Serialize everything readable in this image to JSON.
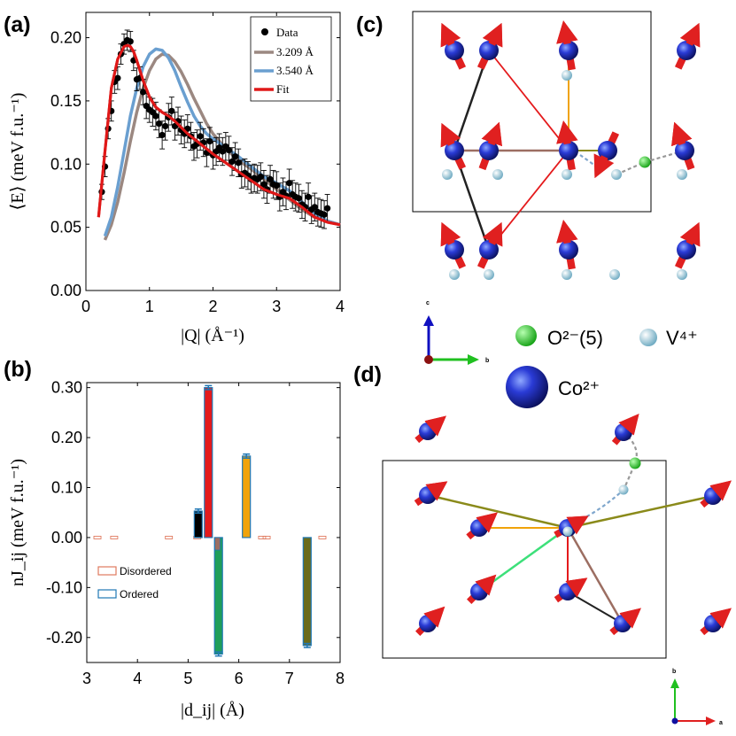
{
  "panels": {
    "a": "(a)",
    "b": "(b)",
    "c": "(c)",
    "d": "(d)"
  },
  "chart_data": [
    {
      "id": "a",
      "type": "line",
      "xlabel": "|Q| (Å⁻¹)",
      "ylabel": "⟨E⟩ (meV f.u.⁻¹)",
      "xlim": [
        0,
        4
      ],
      "ylim": [
        0,
        0.22
      ],
      "xticks": [
        "0",
        "1",
        "2",
        "3",
        "4"
      ],
      "yticks": [
        "0.00",
        "0.05",
        "0.10",
        "0.15",
        "0.20"
      ],
      "legend_position": "top-right",
      "legend": [
        "Data",
        "3.209 Å",
        "3.540 Å",
        "Fit"
      ],
      "colors": {
        "data": "#000000",
        "gray": "#9b8881",
        "blue": "#6a9fd0",
        "fit": "#e01818"
      },
      "data_points": {
        "x": [
          0.25,
          0.3,
          0.35,
          0.4,
          0.45,
          0.5,
          0.55,
          0.6,
          0.65,
          0.7,
          0.75,
          0.8,
          0.85,
          0.9,
          0.95,
          1.0,
          1.05,
          1.1,
          1.15,
          1.2,
          1.25,
          1.3,
          1.35,
          1.4,
          1.45,
          1.5,
          1.55,
          1.6,
          1.65,
          1.7,
          1.75,
          1.8,
          1.85,
          1.9,
          1.95,
          2.0,
          2.05,
          2.1,
          2.15,
          2.2,
          2.25,
          2.3,
          2.35,
          2.4,
          2.45,
          2.5,
          2.55,
          2.6,
          2.65,
          2.7,
          2.75,
          2.8,
          2.85,
          2.9,
          2.95,
          3.0,
          3.05,
          3.1,
          3.15,
          3.2,
          3.25,
          3.3,
          3.35,
          3.4,
          3.45,
          3.5,
          3.55,
          3.6,
          3.65,
          3.7,
          3.75,
          3.8
        ],
        "y": [
          0.078,
          0.098,
          0.128,
          0.142,
          0.165,
          0.168,
          0.187,
          0.195,
          0.198,
          0.197,
          0.182,
          0.167,
          0.168,
          0.157,
          0.146,
          0.143,
          0.141,
          0.138,
          0.132,
          0.123,
          0.13,
          0.137,
          0.142,
          0.13,
          0.134,
          0.127,
          0.124,
          0.128,
          0.122,
          0.114,
          0.116,
          0.122,
          0.117,
          0.109,
          0.118,
          0.107,
          0.11,
          0.113,
          0.11,
          0.114,
          0.111,
          0.102,
          0.106,
          0.101,
          0.092,
          0.093,
          0.091,
          0.088,
          0.089,
          0.088,
          0.09,
          0.084,
          0.08,
          0.088,
          0.084,
          0.083,
          0.074,
          0.078,
          0.075,
          0.085,
          0.076,
          0.074,
          0.073,
          0.068,
          0.066,
          0.074,
          0.064,
          0.066,
          0.062,
          0.061,
          0.06,
          0.065
        ],
        "err": [
          0.006,
          0.008,
          0.008,
          0.008,
          0.009,
          0.009,
          0.008,
          0.008,
          0.008,
          0.008,
          0.008,
          0.009,
          0.009,
          0.01,
          0.01,
          0.01,
          0.011,
          0.011,
          0.011,
          0.011,
          0.011,
          0.011,
          0.011,
          0.011,
          0.011,
          0.011,
          0.011,
          0.011,
          0.011,
          0.011,
          0.011,
          0.011,
          0.011,
          0.011,
          0.011,
          0.011,
          0.011,
          0.011,
          0.011,
          0.011,
          0.011,
          0.011,
          0.011,
          0.011,
          0.011,
          0.011,
          0.011,
          0.011,
          0.011,
          0.011,
          0.011,
          0.011,
          0.011,
          0.011,
          0.011,
          0.011,
          0.011,
          0.011,
          0.011,
          0.011,
          0.011,
          0.011,
          0.011,
          0.011,
          0.011,
          0.011,
          0.011,
          0.011,
          0.011,
          0.011,
          0.011,
          0.011
        ]
      },
      "series": [
        {
          "name": "3.209 Å",
          "x": [
            0.3,
            0.4,
            0.5,
            0.6,
            0.7,
            0.8,
            0.9,
            1.0,
            1.1,
            1.2,
            1.3,
            1.4,
            1.5,
            1.6,
            1.7,
            1.8,
            1.9,
            2.0,
            2.2,
            2.4,
            2.6,
            2.8,
            3.0,
            3.2,
            3.4,
            3.6,
            3.8,
            4.0
          ],
          "y": [
            0.04,
            0.052,
            0.07,
            0.093,
            0.118,
            0.141,
            0.16,
            0.174,
            0.183,
            0.187,
            0.186,
            0.181,
            0.173,
            0.163,
            0.152,
            0.142,
            0.132,
            0.124,
            0.112,
            0.103,
            0.096,
            0.088,
            0.08,
            0.072,
            0.064,
            0.058,
            0.055,
            0.052
          ]
        },
        {
          "name": "3.540 Å",
          "x": [
            0.3,
            0.4,
            0.5,
            0.6,
            0.7,
            0.8,
            0.9,
            1.0,
            1.1,
            1.2,
            1.3,
            1.4,
            1.5,
            1.6,
            1.7,
            1.8,
            1.9,
            2.0,
            2.2,
            2.4,
            2.6,
            2.8,
            3.0,
            3.2,
            3.4,
            3.6,
            3.8,
            4.0
          ],
          "y": [
            0.043,
            0.058,
            0.082,
            0.11,
            0.138,
            0.16,
            0.177,
            0.187,
            0.191,
            0.19,
            0.184,
            0.174,
            0.161,
            0.149,
            0.138,
            0.13,
            0.124,
            0.12,
            0.113,
            0.106,
            0.098,
            0.09,
            0.085,
            0.079,
            0.07,
            0.061,
            0.055,
            0.052
          ]
        },
        {
          "name": "Fit",
          "x": [
            0.2,
            0.3,
            0.4,
            0.5,
            0.6,
            0.65,
            0.7,
            0.75,
            0.8,
            0.9,
            1.0,
            1.1,
            1.2,
            1.3,
            1.4,
            1.5,
            1.6,
            1.7,
            1.8,
            1.9,
            2.0,
            2.2,
            2.4,
            2.6,
            2.8,
            3.0,
            3.2,
            3.4,
            3.6,
            3.8,
            4.0
          ],
          "y": [
            0.058,
            0.11,
            0.16,
            0.183,
            0.193,
            0.194,
            0.193,
            0.189,
            0.182,
            0.166,
            0.153,
            0.145,
            0.141,
            0.138,
            0.134,
            0.129,
            0.124,
            0.12,
            0.116,
            0.112,
            0.108,
            0.101,
            0.094,
            0.087,
            0.08,
            0.076,
            0.073,
            0.066,
            0.058,
            0.054,
            0.052
          ]
        }
      ]
    },
    {
      "id": "b",
      "type": "bar",
      "xlabel": "|d_ij| (Å)",
      "ylabel": "nJ_ij (meV f.u.⁻¹)",
      "xlim": [
        3,
        8
      ],
      "ylim": [
        -0.25,
        0.31
      ],
      "xticks": [
        "3",
        "4",
        "5",
        "6",
        "7",
        "8"
      ],
      "yticks": [
        "0.30",
        "0.20",
        "0.10",
        "0.00",
        "-0.10",
        "-0.20"
      ],
      "legend_position": "lower-left",
      "legend": [
        "Disordered",
        "Ordered"
      ],
      "ordered": [
        {
          "d": 5.2,
          "value": 0.053,
          "err": 0.004,
          "color": "#000000"
        },
        {
          "d": 5.4,
          "value": 0.3,
          "err": 0.004,
          "color": "#e41a1c"
        },
        {
          "d": 5.6,
          "value": -0.233,
          "err": 0.004,
          "color": "#1f9e5a"
        },
        {
          "d": 6.15,
          "value": 0.163,
          "err": 0.004,
          "color": "#f0a30a"
        },
        {
          "d": 7.35,
          "value": -0.216,
          "err": 0.004,
          "color": "#6b6b1a"
        }
      ],
      "disordered": [
        3.21,
        3.54,
        4.62,
        5.18,
        6.46,
        6.55,
        7.65
      ],
      "colors": {
        "disordered": "#e07a5f",
        "ordered": "#1f77b4",
        "brown": "#9c6e62"
      }
    }
  ],
  "key": {
    "oxygen": "O²⁻(5)",
    "vanadium": "V⁴⁺",
    "cobalt": "Co²⁺"
  },
  "axes_c": {
    "c": "c",
    "b": "b"
  },
  "axes_d": {
    "b": "b",
    "a": "a"
  }
}
